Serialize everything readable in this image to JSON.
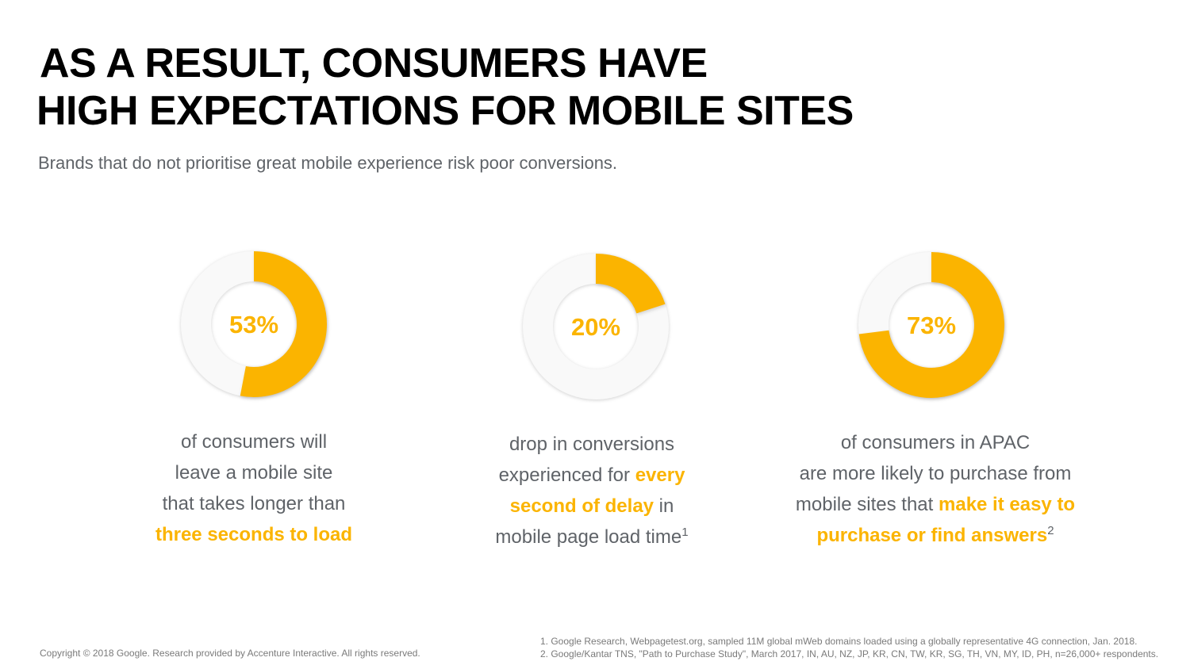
{
  "title": {
    "line1": "AS A RESULT, CONSUMERS HAVE",
    "line2": "HIGH EXPECTATIONS FOR MOBILE SITES"
  },
  "subtitle": "Brands that do not prioritise great mobile experience risk poor conversions.",
  "colors": {
    "accent": "#fbb400",
    "ring": "#f9f9f9",
    "ring_stroke": "#eeeeee",
    "text": "#5f6368",
    "title": "#000000"
  },
  "chart_data": [
    {
      "type": "pie",
      "subtype": "donut",
      "label": "53%",
      "value": 53,
      "total": 100,
      "caption": {
        "l1": "of consumers will",
        "l2": "leave a mobile site",
        "l3": "that takes longer than",
        "hl": "three seconds to load"
      }
    },
    {
      "type": "pie",
      "subtype": "donut",
      "label": "20%",
      "value": 20,
      "total": 100,
      "caption": {
        "l1": "drop in conversions",
        "l2a": "experienced for ",
        "l2hl": "every",
        "l3hl": "second of delay",
        "l3b": " in",
        "l4": "mobile page load time",
        "sup": "1"
      }
    },
    {
      "type": "pie",
      "subtype": "donut",
      "label": "73%",
      "value": 73,
      "total": 100,
      "caption": {
        "l1": "of consumers in APAC",
        "l2": "are more likely to purchase from",
        "l3a": "mobile sites that ",
        "l3hl": "make it easy to",
        "l4hl": "purchase or find answers",
        "sup": "2"
      }
    }
  ],
  "footer": {
    "copyright": "Copyright © 2018 Google. Research provided by Accenture Interactive. All rights reserved.",
    "footnote1": "1. Google Research, Webpagetest.org, sampled 11M global mWeb domains loaded using a globally representative 4G connection, Jan. 2018.",
    "footnote2": "2. Google/Kantar TNS, \"Path to Purchase Study\", March 2017, IN, AU, NZ, JP, KR, CN, TW, KR, SG, TH, VN, MY, ID, PH, n=26,000+ respondents."
  }
}
